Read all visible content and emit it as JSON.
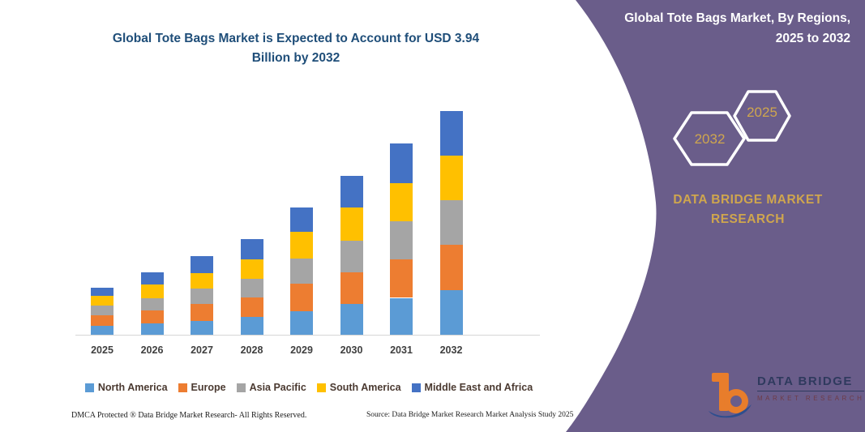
{
  "left_panel": {
    "title_line1": "Global Tote Bags Market is Expected to Account for USD 3.94",
    "title_line2": "Billion by 2032",
    "footer_left": "DMCA Protected ® Data Bridge Market Research-  All Rights Reserved.",
    "footer_right": "Source: Data Bridge Market Research  Market Analysis Study 2025"
  },
  "right_panel": {
    "title_line1": "Global Tote Bags Market, By Regions,",
    "title_line2": "2025 to 2032",
    "hexagon_large_label": "2032",
    "hexagon_small_label": "2025",
    "brand_line1": "DATA BRIDGE MARKET",
    "brand_line2": "RESEARCH",
    "logo_line1": "DATA BRIDGE",
    "logo_line2": "MARKET RESEARCH",
    "colors": {
      "panel_purple": "#6a5d8a",
      "accent_gold": "#cfa64e",
      "hexagon_outline": "#ffffff"
    }
  },
  "chart_data": {
    "type": "bar",
    "stacked": true,
    "title": "Global Tote Bags Market is Expected to Account for USD 3.94 Billion by 2032",
    "unit": "USD Billion",
    "categories": [
      "2025",
      "2026",
      "2027",
      "2028",
      "2029",
      "2030",
      "2031",
      "2032"
    ],
    "series": [
      {
        "name": "North America",
        "color": "#5B9BD5",
        "values": [
          0.16,
          0.2,
          0.24,
          0.31,
          0.42,
          0.54,
          0.65,
          0.78
        ]
      },
      {
        "name": "Europe",
        "color": "#ED7D31",
        "values": [
          0.18,
          0.23,
          0.3,
          0.35,
          0.48,
          0.56,
          0.68,
          0.8
        ]
      },
      {
        "name": "Asia Pacific",
        "color": "#A5A5A5",
        "values": [
          0.18,
          0.21,
          0.28,
          0.32,
          0.44,
          0.56,
          0.67,
          0.79
        ]
      },
      {
        "name": "South America",
        "color": "#FFC000",
        "values": [
          0.17,
          0.24,
          0.26,
          0.35,
          0.47,
          0.59,
          0.67,
          0.79
        ]
      },
      {
        "name": "Middle East and Africa",
        "color": "#4472C4",
        "values": [
          0.14,
          0.22,
          0.31,
          0.36,
          0.43,
          0.55,
          0.7,
          0.78
        ]
      }
    ],
    "totals": [
      0.83,
      1.1,
      1.39,
      1.69,
      2.24,
      2.8,
      3.37,
      3.94
    ],
    "xlabel": "",
    "ylabel": "",
    "ylim": [
      0,
      4.2
    ],
    "y_axis_visible": false,
    "grid": false,
    "legend_position": "bottom",
    "title_color": "#1f4e79",
    "axis_line_color": "#d6d6d6"
  }
}
